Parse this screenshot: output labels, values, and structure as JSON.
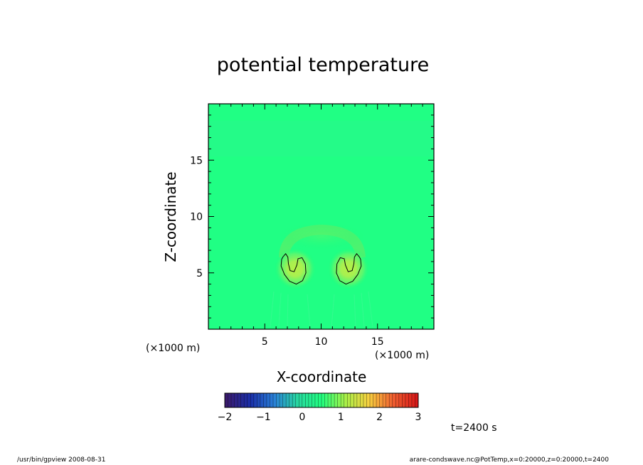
{
  "chart_data": {
    "type": "heatmap",
    "title": "potential temperature",
    "xlabel": "X-coordinate",
    "ylabel": "Z-coordinate",
    "x_unit": "(×1000 m)",
    "y_unit": "(×1000 m)",
    "xlim": [
      0,
      20
    ],
    "ylim": [
      0,
      20
    ],
    "x_ticks": [
      5,
      10,
      15
    ],
    "y_ticks": [
      5,
      10,
      15
    ],
    "time_label": "t=2400 s",
    "colorbar": {
      "range": [
        -2,
        3
      ],
      "ticks": [
        -2,
        -1,
        0,
        1,
        2,
        3
      ],
      "colors": [
        "#3a1a6e",
        "#1a2ea8",
        "#2a7fd8",
        "#28d8a0",
        "#20ff80",
        "#a8f048",
        "#f8d040",
        "#f06030",
        "#d81818"
      ]
    },
    "background_value": 0.3,
    "features": [
      {
        "name": "left thermal",
        "x": 7.6,
        "z": 5.7,
        "value": 1.4
      },
      {
        "name": "right thermal",
        "x": 12.4,
        "z": 5.7,
        "value": 1.4
      },
      {
        "name": "arc",
        "x": 10.0,
        "z": 8.2,
        "value": 0.9
      }
    ],
    "contour_level": 1.0,
    "contours": [
      {
        "name": "left",
        "points": [
          [
            6.6,
            6.4
          ],
          [
            6.85,
            6.7
          ],
          [
            7.05,
            6.4
          ],
          [
            7.1,
            5.8
          ],
          [
            7.25,
            5.2
          ],
          [
            7.6,
            5.1
          ],
          [
            7.85,
            5.7
          ],
          [
            7.95,
            6.25
          ],
          [
            8.3,
            6.35
          ],
          [
            8.6,
            5.8
          ],
          [
            8.65,
            5.0
          ],
          [
            8.35,
            4.3
          ],
          [
            7.8,
            4.0
          ],
          [
            7.2,
            4.25
          ],
          [
            6.75,
            4.85
          ],
          [
            6.45,
            5.6
          ],
          [
            6.5,
            6.2
          ]
        ]
      },
      {
        "name": "right",
        "points": [
          [
            13.4,
            6.4
          ],
          [
            13.15,
            6.7
          ],
          [
            12.95,
            6.4
          ],
          [
            12.9,
            5.8
          ],
          [
            12.75,
            5.2
          ],
          [
            12.4,
            5.1
          ],
          [
            12.15,
            5.7
          ],
          [
            12.05,
            6.25
          ],
          [
            11.7,
            6.35
          ],
          [
            11.4,
            5.8
          ],
          [
            11.35,
            5.0
          ],
          [
            11.65,
            4.3
          ],
          [
            12.2,
            4.0
          ],
          [
            12.8,
            4.25
          ],
          [
            13.25,
            4.85
          ],
          [
            13.55,
            5.6
          ],
          [
            13.5,
            6.2
          ]
        ]
      }
    ]
  },
  "footer": {
    "left": "/usr/bin/gpview    2008-08-31",
    "right": "arare-condswave.nc@PotTemp,x=0:20000,z=0:20000,t=2400"
  }
}
